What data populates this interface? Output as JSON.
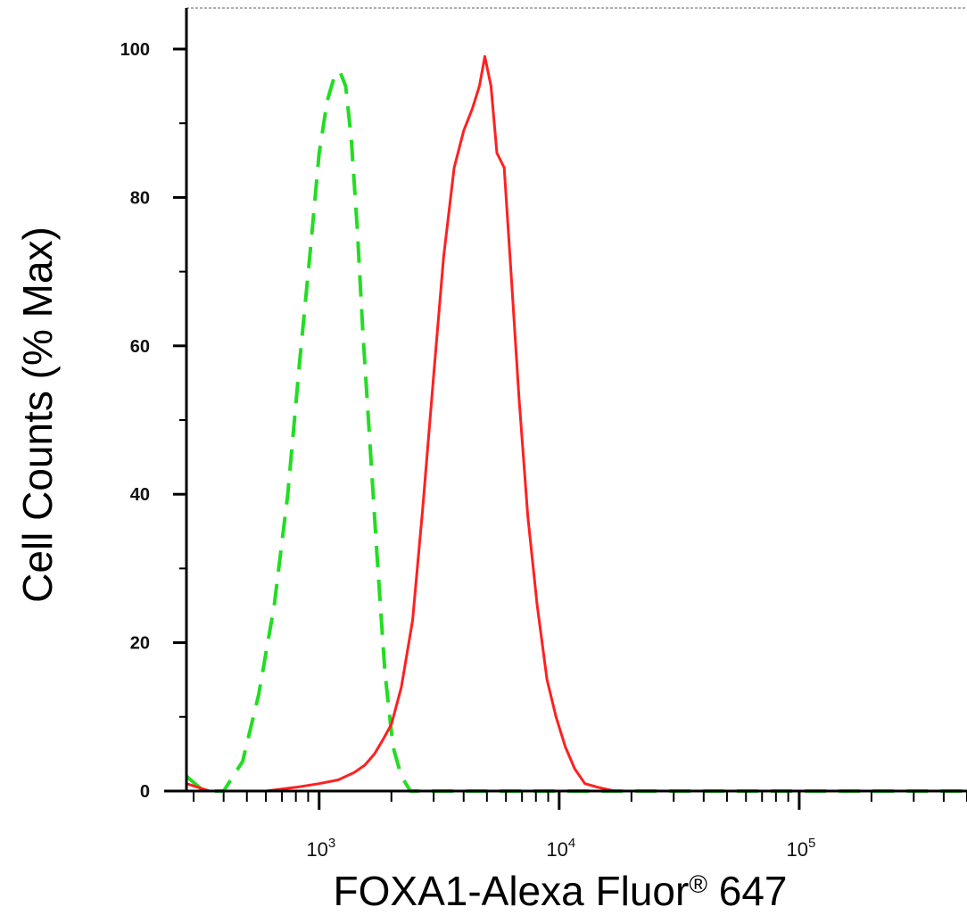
{
  "chart_data": {
    "type": "line",
    "xlabel": "FOXA1-Alexa Fluor",
    "xlabel_sup": "®",
    "xlabel_suffix": " 647",
    "ylabel": "Cell Counts (% Max)",
    "x_scale": "log",
    "xlim": [
      280,
      500000
    ],
    "ylim": [
      0,
      100
    ],
    "y_ticks": [
      0,
      20,
      40,
      60,
      80,
      100
    ],
    "y_tick_labels": [
      "0",
      "20",
      "40",
      "60",
      "80",
      "100"
    ],
    "x_decades": [
      {
        "value": 1000,
        "base": "10",
        "exp": "3"
      },
      {
        "value": 10000,
        "base": "10",
        "exp": "4"
      },
      {
        "value": 100000,
        "base": "10",
        "exp": "5"
      }
    ],
    "grid": false,
    "series": [
      {
        "style": "dashed",
        "color": "#22dd22",
        "x": [
          280,
          330,
          400,
          480,
          560,
          650,
          740,
          830,
          920,
          1000,
          1080,
          1150,
          1220,
          1290,
          1360,
          1440,
          1520,
          1620,
          1740,
          1880,
          2030,
          2200,
          2400,
          2700,
          3200,
          5000,
          10000,
          30000,
          100000,
          500000
        ],
        "y": [
          2,
          0,
          0,
          4,
          13,
          25,
          40,
          58,
          73,
          86,
          93,
          96,
          97,
          95,
          88,
          76,
          62,
          48,
          32,
          16,
          6,
          2,
          0,
          0,
          0,
          0,
          0,
          0,
          0,
          0
        ]
      },
      {
        "style": "solid",
        "color": "#ff2020",
        "x": [
          280,
          350,
          450,
          600,
          800,
          1000,
          1200,
          1400,
          1550,
          1700,
          1850,
          2000,
          2200,
          2450,
          2700,
          3000,
          3300,
          3650,
          4000,
          4350,
          4650,
          4900,
          5200,
          5500,
          5900,
          6300,
          6800,
          7400,
          8100,
          8900,
          9700,
          10600,
          11600,
          12800,
          14500,
          17000,
          22000,
          50000,
          200000,
          500000
        ],
        "y": [
          1,
          0,
          0,
          0,
          0.5,
          1,
          1.5,
          2.5,
          3.5,
          5,
          7,
          9,
          14,
          23,
          38,
          56,
          72,
          84,
          89,
          92,
          95,
          99,
          95,
          86,
          84,
          70,
          53,
          37,
          25,
          15,
          10,
          6,
          3,
          1,
          0.5,
          0,
          0,
          0,
          0,
          0
        ]
      }
    ]
  }
}
